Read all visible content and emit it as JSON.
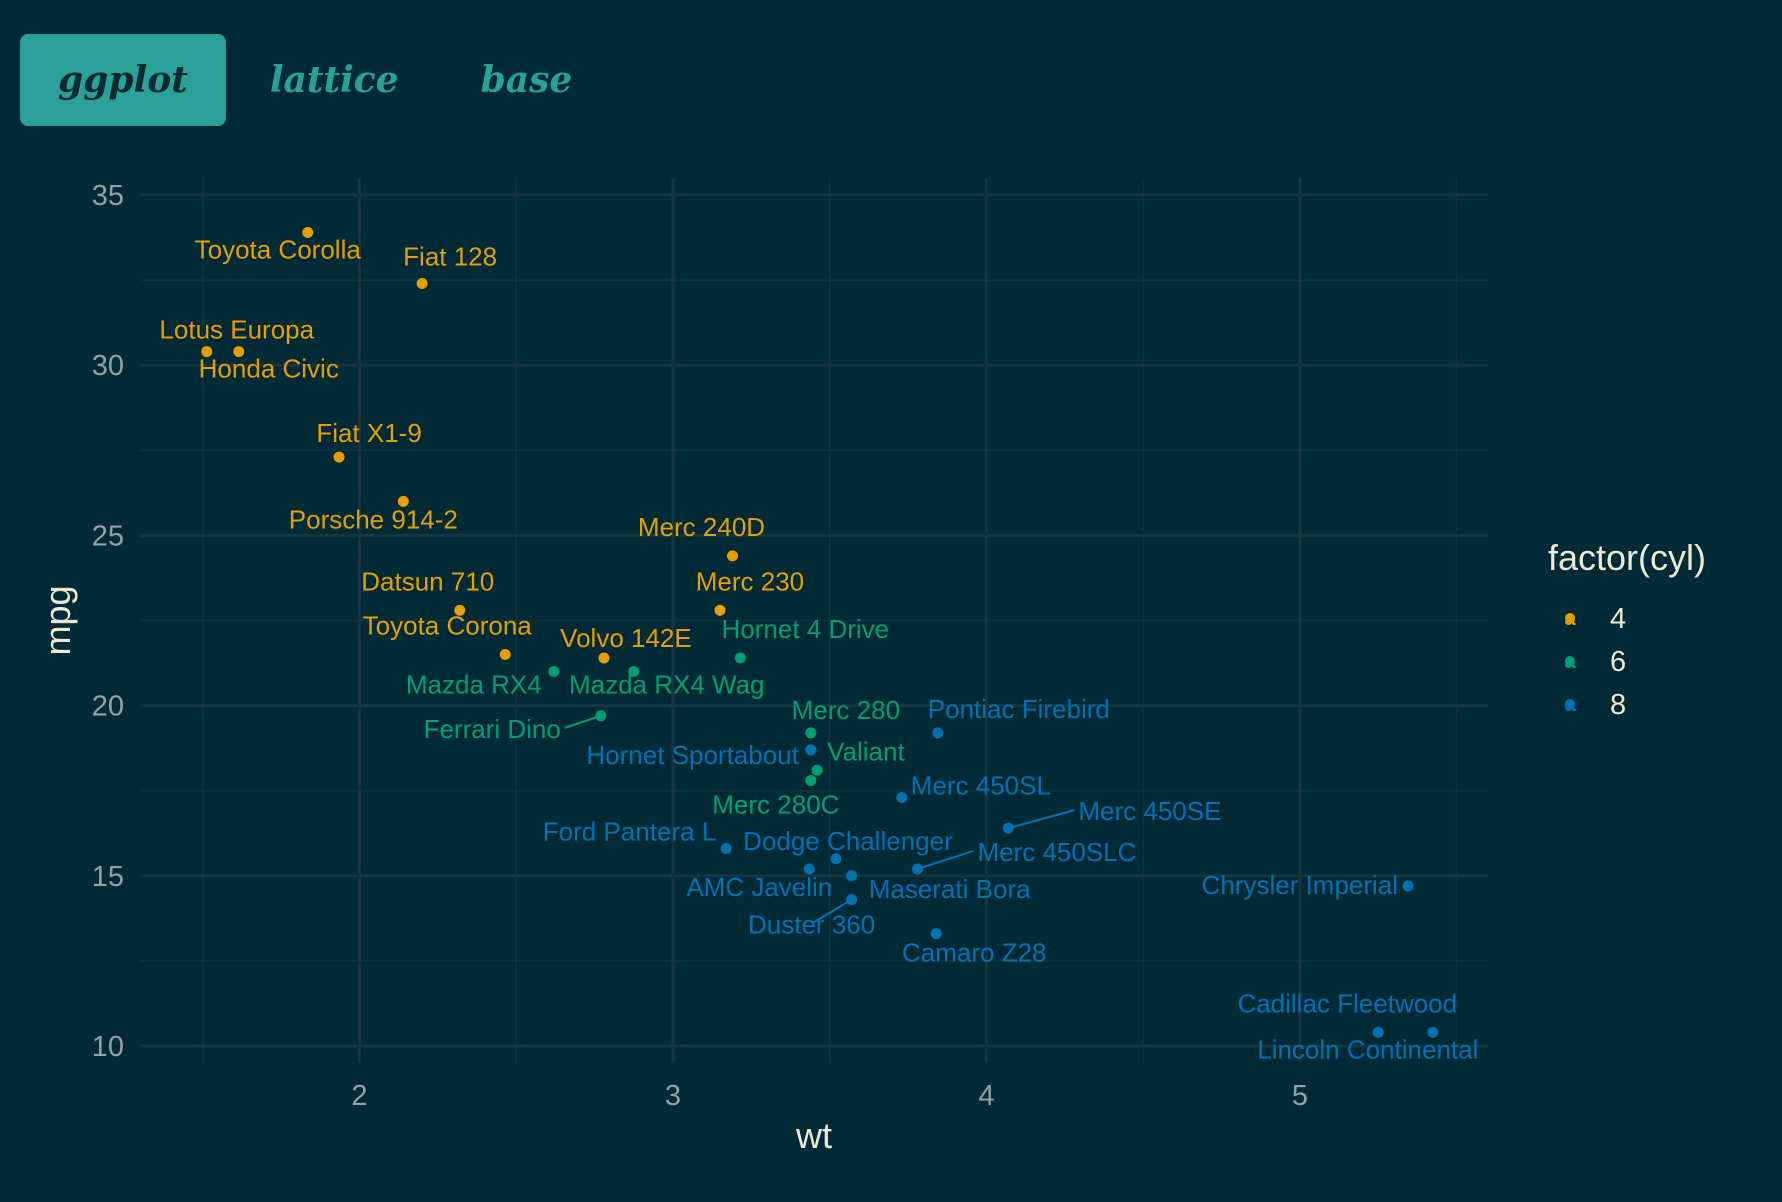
{
  "tabs": [
    {
      "label": "ggplot",
      "active": true
    },
    {
      "label": "lattice",
      "active": false
    },
    {
      "label": "base",
      "active": false
    }
  ],
  "colors": {
    "background": "#002b36",
    "tab_active_bg": "#2aa198",
    "tab_text": "#2aa198",
    "grid_major": "#16353e",
    "grid_minor": "#0f333c",
    "axis_text": "#93a1a1",
    "axis_title": "#eee8d5",
    "cyl4": "#e69f00",
    "cyl6": "#009e73",
    "cyl8": "#0072b2"
  },
  "chart_data": {
    "type": "scatter",
    "x_label": "wt",
    "y_label": "mpg",
    "xlim": [
      1.3,
      5.6
    ],
    "ylim": [
      9.5,
      35.5
    ],
    "x_ticks": [
      2,
      3,
      4,
      5
    ],
    "y_ticks": [
      10,
      15,
      20,
      25,
      30,
      35
    ],
    "grid": true,
    "legend": {
      "title": "factor(cyl)",
      "position": "right",
      "key_glyph": "a",
      "entries": [
        {
          "label": "4",
          "color": "#e69f00"
        },
        {
          "label": "6",
          "color": "#009e73"
        },
        {
          "label": "8",
          "color": "#0072b2"
        }
      ]
    },
    "points": [
      {
        "label": "Mazda RX4",
        "wt": 2.62,
        "mpg": 21.0,
        "cyl": "6"
      },
      {
        "label": "Mazda RX4 Wag",
        "wt": 2.875,
        "mpg": 21.0,
        "cyl": "6"
      },
      {
        "label": "Datsun 710",
        "wt": 2.32,
        "mpg": 22.8,
        "cyl": "4"
      },
      {
        "label": "Hornet 4 Drive",
        "wt": 3.215,
        "mpg": 21.4,
        "cyl": "6"
      },
      {
        "label": "Hornet Sportabout",
        "wt": 3.44,
        "mpg": 18.7,
        "cyl": "8"
      },
      {
        "label": "Valiant",
        "wt": 3.46,
        "mpg": 18.1,
        "cyl": "6"
      },
      {
        "label": "Duster 360",
        "wt": 3.57,
        "mpg": 14.3,
        "cyl": "8"
      },
      {
        "label": "Merc 240D",
        "wt": 3.19,
        "mpg": 24.4,
        "cyl": "4"
      },
      {
        "label": "Merc 230",
        "wt": 3.15,
        "mpg": 22.8,
        "cyl": "4"
      },
      {
        "label": "Merc 280",
        "wt": 3.44,
        "mpg": 19.2,
        "cyl": "6"
      },
      {
        "label": "Merc 280C",
        "wt": 3.44,
        "mpg": 17.8,
        "cyl": "6"
      },
      {
        "label": "Merc 450SE",
        "wt": 4.07,
        "mpg": 16.4,
        "cyl": "8"
      },
      {
        "label": "Merc 450SL",
        "wt": 3.73,
        "mpg": 17.3,
        "cyl": "8"
      },
      {
        "label": "Merc 450SLC",
        "wt": 3.78,
        "mpg": 15.2,
        "cyl": "8"
      },
      {
        "label": "Cadillac Fleetwood",
        "wt": 5.25,
        "mpg": 10.4,
        "cyl": "8"
      },
      {
        "label": "Lincoln Continental",
        "wt": 5.424,
        "mpg": 10.4,
        "cyl": "8"
      },
      {
        "label": "Chrysler Imperial",
        "wt": 5.345,
        "mpg": 14.7,
        "cyl": "8"
      },
      {
        "label": "Fiat 128",
        "wt": 2.2,
        "mpg": 32.4,
        "cyl": "4"
      },
      {
        "label": "Honda Civic",
        "wt": 1.615,
        "mpg": 30.4,
        "cyl": "4"
      },
      {
        "label": "Toyota Corolla",
        "wt": 1.835,
        "mpg": 33.9,
        "cyl": "4"
      },
      {
        "label": "Toyota Corona",
        "wt": 2.465,
        "mpg": 21.5,
        "cyl": "4"
      },
      {
        "label": "Dodge Challenger",
        "wt": 3.52,
        "mpg": 15.5,
        "cyl": "8"
      },
      {
        "label": "AMC Javelin",
        "wt": 3.435,
        "mpg": 15.2,
        "cyl": "8"
      },
      {
        "label": "Camaro Z28",
        "wt": 3.84,
        "mpg": 13.3,
        "cyl": "8"
      },
      {
        "label": "Pontiac Firebird",
        "wt": 3.845,
        "mpg": 19.2,
        "cyl": "8"
      },
      {
        "label": "Fiat X1-9",
        "wt": 1.935,
        "mpg": 27.3,
        "cyl": "4"
      },
      {
        "label": "Porsche 914-2",
        "wt": 2.14,
        "mpg": 26.0,
        "cyl": "4"
      },
      {
        "label": "Lotus Europa",
        "wt": 1.513,
        "mpg": 30.4,
        "cyl": "4"
      },
      {
        "label": "Ford Pantera L",
        "wt": 3.17,
        "mpg": 15.8,
        "cyl": "8"
      },
      {
        "label": "Ferrari Dino",
        "wt": 2.77,
        "mpg": 19.7,
        "cyl": "6"
      },
      {
        "label": "Maserati Bora",
        "wt": 3.57,
        "mpg": 15.0,
        "cyl": "8"
      },
      {
        "label": "Volvo 142E",
        "wt": 2.78,
        "mpg": 21.4,
        "cyl": "4"
      }
    ]
  }
}
